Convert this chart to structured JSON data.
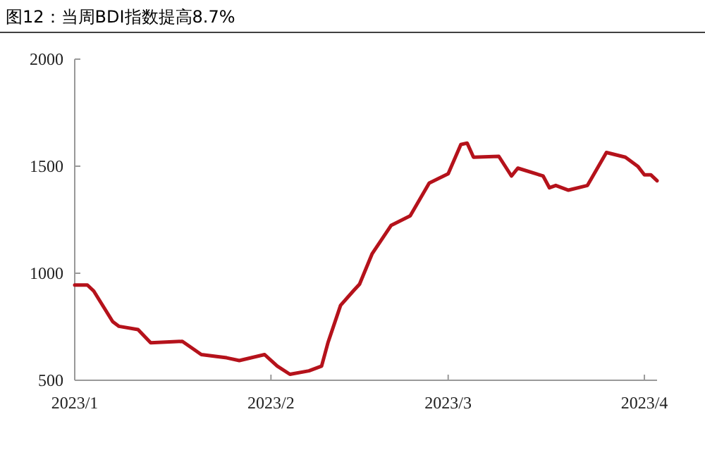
{
  "chart_data": {
    "type": "line",
    "title": "图12：当周BDI指数提高8.7%",
    "x": [
      "2023-01-01",
      "2023-01-03",
      "2023-01-04",
      "2023-01-07",
      "2023-01-08",
      "2023-01-11",
      "2023-01-13",
      "2023-01-18",
      "2023-01-21",
      "2023-01-25",
      "2023-01-27",
      "2023-01-31",
      "2023-02-02",
      "2023-02-04",
      "2023-02-07",
      "2023-02-09",
      "2023-02-10",
      "2023-02-12",
      "2023-02-14",
      "2023-02-15",
      "2023-02-17",
      "2023-02-20",
      "2023-02-23",
      "2023-02-26",
      "2023-03-01",
      "2023-03-03",
      "2023-03-04",
      "2023-03-05",
      "2023-03-09",
      "2023-03-11",
      "2023-03-12",
      "2023-03-16",
      "2023-03-17",
      "2023-03-18",
      "2023-03-20",
      "2023-03-23",
      "2023-03-26",
      "2023-03-29",
      "2023-03-31",
      "2023-04-01",
      "2023-04-02",
      "2023-04-03"
    ],
    "series": [
      {
        "color": "#b5121b",
        "values": [
          945,
          945,
          917,
          774,
          752,
          737,
          675,
          682,
          620,
          605,
          592,
          620,
          566,
          528,
          544,
          566,
          675,
          850,
          917,
          949,
          1092,
          1224,
          1268,
          1421,
          1465,
          1601,
          1608,
          1542,
          1546,
          1454,
          1491,
          1454,
          1399,
          1410,
          1388,
          1410,
          1564,
          1542,
          1498,
          1460,
          1460,
          1432
        ]
      }
    ],
    "xlim": [
      "2023-01-01",
      "2023-04-03"
    ],
    "xticks": [
      {
        "value": "2023-01-01",
        "label": "2023/1"
      },
      {
        "value": "2023-02-01",
        "label": "2023/2"
      },
      {
        "value": "2023-03-01",
        "label": "2023/3"
      },
      {
        "value": "2023-04-01",
        "label": "2023/4"
      }
    ],
    "ylim": [
      500,
      2000
    ],
    "yticks": [
      500,
      1000,
      1500,
      2000
    ],
    "grid": false,
    "marker": "none",
    "line_style": "solid"
  }
}
